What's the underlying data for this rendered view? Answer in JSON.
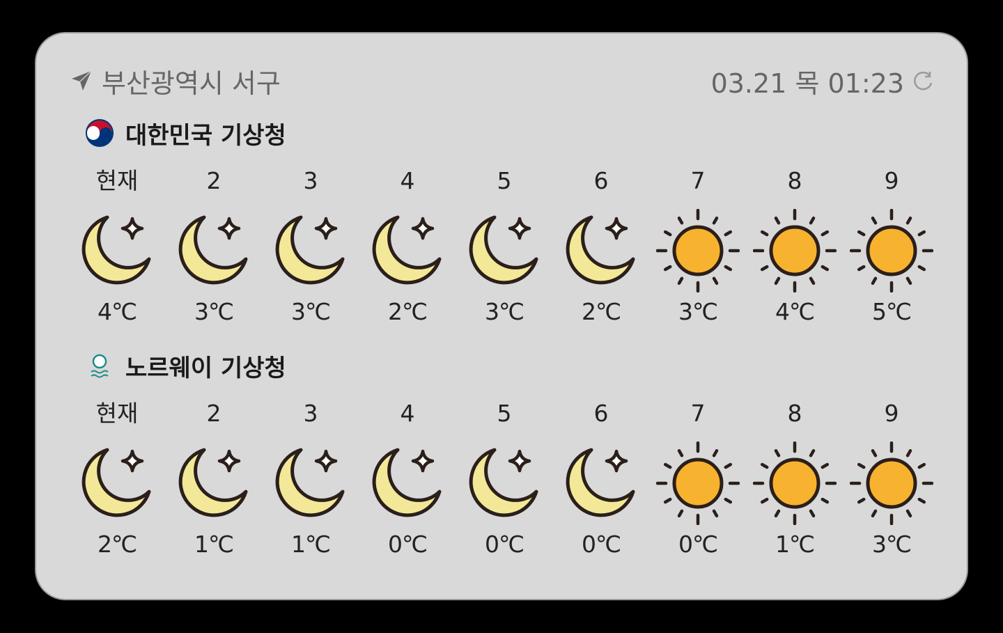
{
  "header": {
    "location": "부산광역시 서구",
    "datetime": "03.21 목 01:23",
    "location_icon": "navigation-arrow-icon",
    "refresh_icon": "refresh-icon"
  },
  "sources": [
    {
      "name": "대한민국 기상청",
      "icon": "korea-kma-logo-icon",
      "forecast": [
        {
          "hour": "현재",
          "icon": "moon",
          "temp": "4℃"
        },
        {
          "hour": "2",
          "icon": "moon",
          "temp": "3℃"
        },
        {
          "hour": "3",
          "icon": "moon",
          "temp": "3℃"
        },
        {
          "hour": "4",
          "icon": "moon",
          "temp": "2℃"
        },
        {
          "hour": "5",
          "icon": "moon",
          "temp": "3℃"
        },
        {
          "hour": "6",
          "icon": "moon",
          "temp": "2℃"
        },
        {
          "hour": "7",
          "icon": "sun",
          "temp": "3℃"
        },
        {
          "hour": "8",
          "icon": "sun",
          "temp": "4℃"
        },
        {
          "hour": "9",
          "icon": "sun",
          "temp": "5℃"
        }
      ]
    },
    {
      "name": "노르웨이 기상청",
      "icon": "norway-met-logo-icon",
      "forecast": [
        {
          "hour": "현재",
          "icon": "moon",
          "temp": "2℃"
        },
        {
          "hour": "2",
          "icon": "moon",
          "temp": "1℃"
        },
        {
          "hour": "3",
          "icon": "moon",
          "temp": "1℃"
        },
        {
          "hour": "4",
          "icon": "moon",
          "temp": "0℃"
        },
        {
          "hour": "5",
          "icon": "moon",
          "temp": "0℃"
        },
        {
          "hour": "6",
          "icon": "moon",
          "temp": "0℃"
        },
        {
          "hour": "7",
          "icon": "sun",
          "temp": "0℃"
        },
        {
          "hour": "8",
          "icon": "sun",
          "temp": "1℃"
        },
        {
          "hour": "9",
          "icon": "sun",
          "temp": "3℃"
        }
      ]
    }
  ],
  "colors": {
    "card_bg": "#d9d9d9",
    "moon_fill": "#f3e898",
    "sun_fill": "#f7b22f",
    "outline": "#2a1f1a",
    "muted_text": "#666666"
  }
}
